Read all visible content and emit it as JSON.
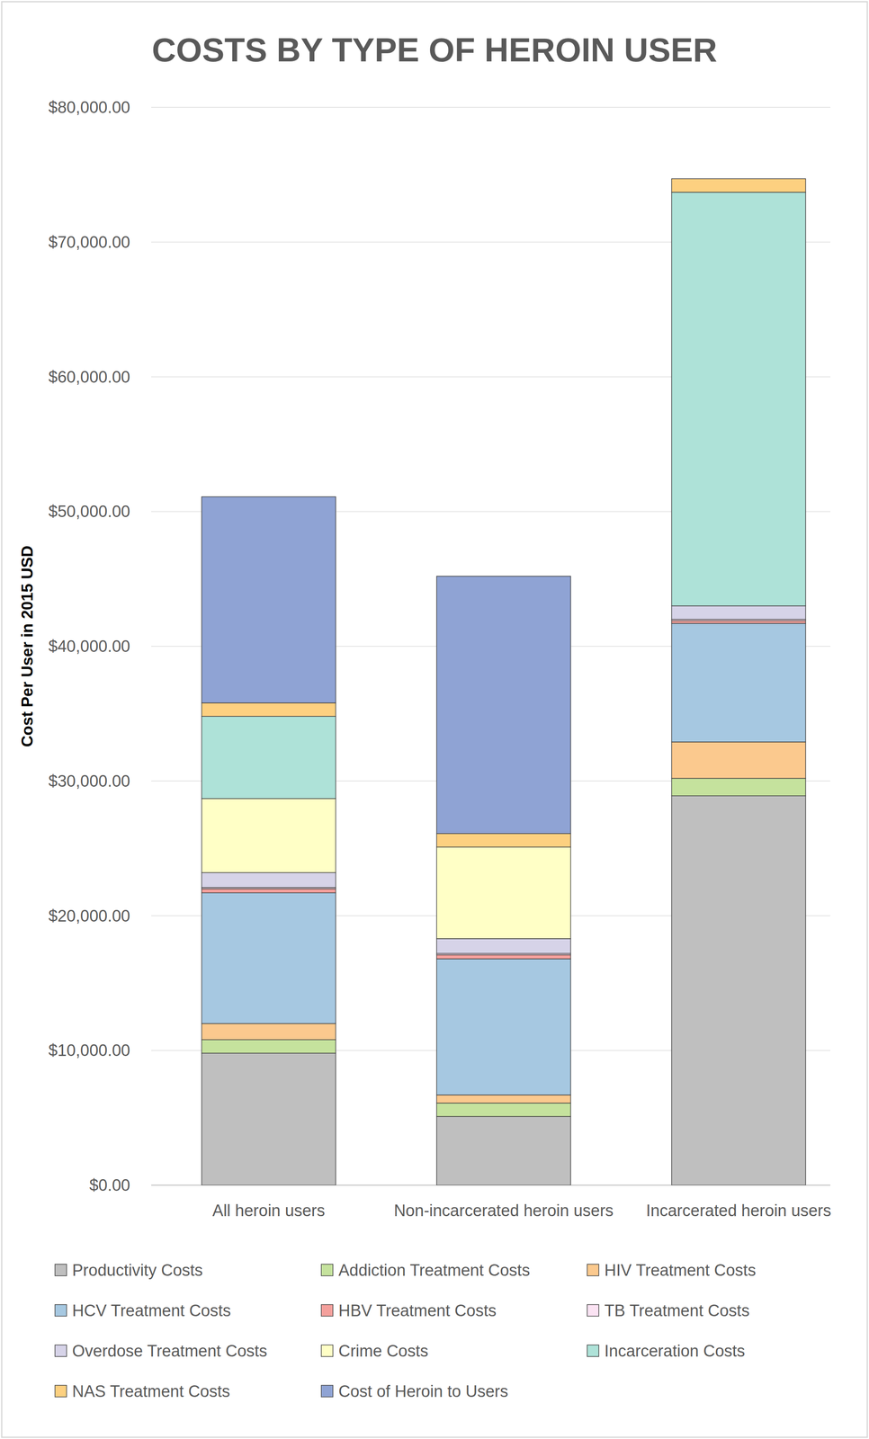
{
  "chart_data": {
    "type": "bar",
    "title": "COSTS BY TYPE OF HEROIN USER",
    "y_label": "Cost Per User in 2015 USD",
    "categories": [
      "All heroin users",
      "Non-incarcerated heroin users",
      "Incarcerated heroin users"
    ],
    "stacked": true,
    "grid": true,
    "legend": "bottom",
    "ylim": [
      0,
      80000
    ],
    "yticks": [
      {
        "value": 0,
        "label": "$0.00"
      },
      {
        "value": 10000,
        "label": "$10,000.00"
      },
      {
        "value": 20000,
        "label": "$20,000.00"
      },
      {
        "value": 30000,
        "label": "$30,000.00"
      },
      {
        "value": 40000,
        "label": "$40,000.00"
      },
      {
        "value": 50000,
        "label": "$50,000.00"
      },
      {
        "value": 60000,
        "label": "$60,000.00"
      },
      {
        "value": 70000,
        "label": "$70,000.00"
      },
      {
        "value": 80000,
        "label": "$80,000.00"
      }
    ],
    "series": [
      {
        "name": "Productivity Costs",
        "color": "#bfbfbf",
        "values": [
          9800,
          5100,
          28900
        ]
      },
      {
        "name": "Addiction Treatment Costs",
        "color": "#c5e29d",
        "values": [
          1000,
          1000,
          1300
        ]
      },
      {
        "name": "HIV Treatment Costs",
        "color": "#fbc98e",
        "values": [
          1200,
          600,
          2700
        ]
      },
      {
        "name": "HCV Treatment Costs",
        "color": "#a6c8e1",
        "values": [
          9700,
          10100,
          8800
        ]
      },
      {
        "name": "HBV Treatment Costs",
        "color": "#f4a09c",
        "values": [
          300,
          300,
          200
        ]
      },
      {
        "name": "TB Treatment Costs",
        "color": "#fbe3f3",
        "values": [
          100,
          100,
          100
        ]
      },
      {
        "name": "Overdose Treatment Costs",
        "color": "#d6d3e8",
        "values": [
          1100,
          1100,
          1000
        ]
      },
      {
        "name": "Crime Costs",
        "color": "#ffffc6",
        "values": [
          5500,
          6800,
          0
        ]
      },
      {
        "name": "Incarceration Costs",
        "color": "#aee2d8",
        "values": [
          6100,
          0,
          30700
        ]
      },
      {
        "name": "NAS Treatment Costs",
        "color": "#fdd080",
        "values": [
          1000,
          1000,
          1000
        ]
      },
      {
        "name": "Cost of Heroin to Users",
        "color": "#8fa3d4",
        "values": [
          15300,
          19100,
          0
        ]
      }
    ]
  }
}
